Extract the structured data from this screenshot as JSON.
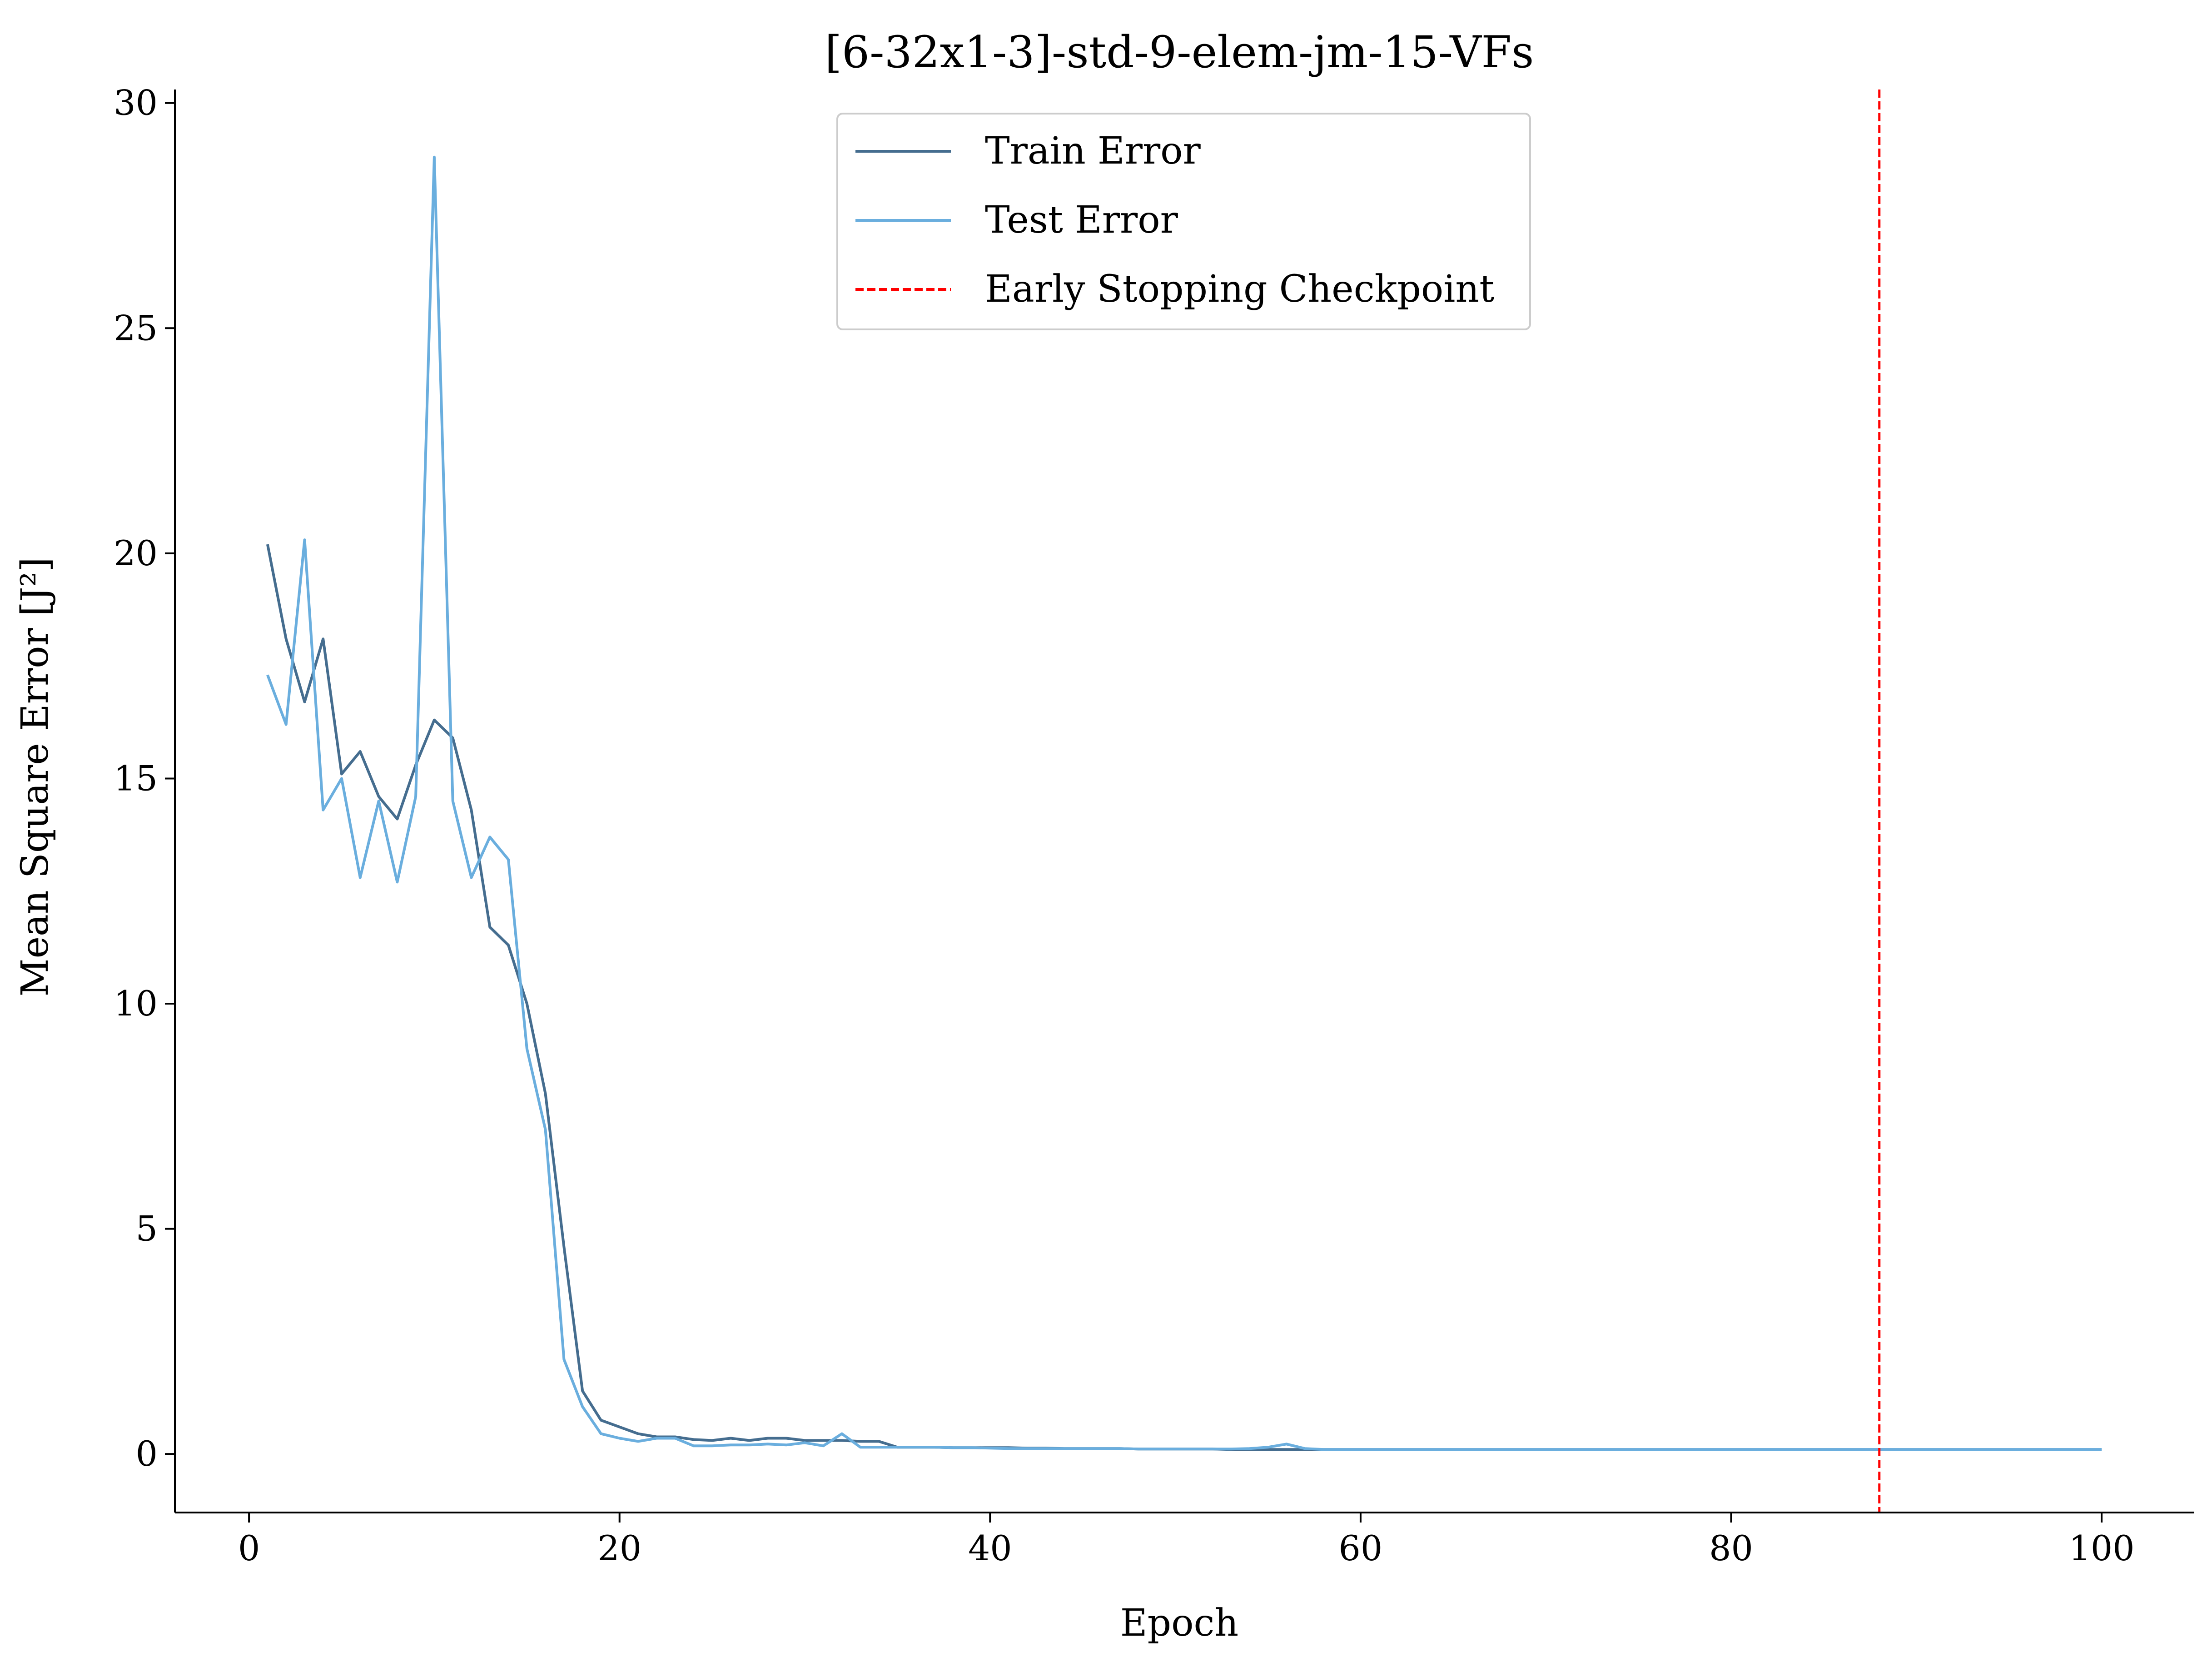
{
  "chart_data": {
    "type": "line",
    "title": "[6-32x1-3]-std-9-elem-jm-15-VFs",
    "xlabel": "Epoch",
    "ylabel": "Mean Square Error [J²]",
    "xlim": [
      -4,
      105
    ],
    "ylim": [
      -1.3,
      30.3
    ],
    "xticks": [
      0,
      20,
      40,
      60,
      80,
      100
    ],
    "yticks": [
      0,
      5,
      10,
      15,
      20,
      25,
      30
    ],
    "grid": false,
    "legend_position": "top-center",
    "x": [
      1,
      2,
      3,
      4,
      5,
      6,
      7,
      8,
      9,
      10,
      11,
      12,
      13,
      14,
      15,
      16,
      17,
      18,
      19,
      20,
      21,
      22,
      23,
      24,
      25,
      26,
      27,
      28,
      29,
      30,
      31,
      32,
      33,
      34,
      35,
      36,
      37,
      38,
      39,
      40,
      41,
      42,
      43,
      44,
      45,
      46,
      47,
      48,
      49,
      50,
      51,
      52,
      53,
      54,
      55,
      56,
      57,
      58,
      59,
      60,
      61,
      62,
      63,
      64,
      65,
      66,
      67,
      68,
      69,
      70,
      71,
      72,
      73,
      74,
      75,
      76,
      77,
      78,
      79,
      80,
      81,
      82,
      83,
      84,
      85,
      86,
      87,
      88,
      89,
      90,
      91,
      92,
      93,
      94,
      95,
      96,
      97,
      98,
      99,
      100
    ],
    "series": [
      {
        "name": "Train Error",
        "color": "#456d8f",
        "style": "solid",
        "values": [
          20.2,
          18.1,
          16.7,
          18.1,
          15.1,
          15.6,
          14.6,
          14.1,
          15.3,
          16.3,
          15.9,
          14.3,
          11.7,
          11.3,
          10.0,
          8.0,
          4.6,
          1.4,
          0.75,
          0.6,
          0.45,
          0.38,
          0.38,
          0.32,
          0.3,
          0.35,
          0.3,
          0.35,
          0.35,
          0.3,
          0.3,
          0.3,
          0.28,
          0.28,
          0.15,
          0.15,
          0.15,
          0.14,
          0.14,
          0.14,
          0.14,
          0.13,
          0.13,
          0.12,
          0.12,
          0.12,
          0.12,
          0.11,
          0.11,
          0.11,
          0.11,
          0.11,
          0.1,
          0.1,
          0.1,
          0.1,
          0.1,
          0.1,
          0.1,
          0.1,
          0.1,
          0.1,
          0.1,
          0.1,
          0.1,
          0.1,
          0.1,
          0.1,
          0.1,
          0.1,
          0.1,
          0.1,
          0.1,
          0.1,
          0.1,
          0.1,
          0.1,
          0.1,
          0.1,
          0.1,
          0.1,
          0.1,
          0.1,
          0.1,
          0.1,
          0.1,
          0.1,
          0.1,
          0.1,
          0.1,
          0.1,
          0.1,
          0.1,
          0.1,
          0.1,
          0.1,
          0.1,
          0.1,
          0.1,
          0.1
        ]
      },
      {
        "name": "Test Error",
        "color": "#6aaede",
        "style": "solid",
        "values": [
          17.3,
          16.2,
          20.3,
          14.3,
          15.0,
          12.8,
          14.5,
          12.7,
          14.6,
          28.8,
          14.5,
          12.8,
          13.7,
          13.2,
          9.0,
          7.2,
          2.1,
          1.05,
          0.45,
          0.35,
          0.28,
          0.35,
          0.35,
          0.18,
          0.18,
          0.2,
          0.2,
          0.22,
          0.2,
          0.25,
          0.18,
          0.45,
          0.15,
          0.15,
          0.15,
          0.15,
          0.15,
          0.14,
          0.14,
          0.13,
          0.12,
          0.12,
          0.12,
          0.12,
          0.12,
          0.12,
          0.12,
          0.11,
          0.11,
          0.11,
          0.11,
          0.11,
          0.11,
          0.12,
          0.15,
          0.22,
          0.12,
          0.1,
          0.1,
          0.1,
          0.1,
          0.1,
          0.1,
          0.1,
          0.1,
          0.1,
          0.1,
          0.1,
          0.1,
          0.1,
          0.1,
          0.1,
          0.1,
          0.1,
          0.1,
          0.1,
          0.1,
          0.1,
          0.1,
          0.1,
          0.1,
          0.1,
          0.1,
          0.1,
          0.1,
          0.1,
          0.1,
          0.1,
          0.1,
          0.1,
          0.1,
          0.1,
          0.1,
          0.1,
          0.1,
          0.1,
          0.1,
          0.1,
          0.1,
          0.1
        ]
      }
    ],
    "vlines": [
      {
        "name": "Early Stopping Checkpoint",
        "x": 88,
        "color": "#ff0000",
        "style": "dashed"
      }
    ]
  }
}
